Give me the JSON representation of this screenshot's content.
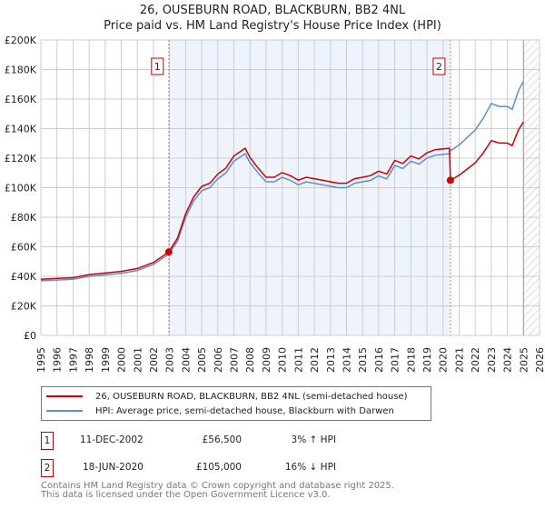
{
  "title_line1": "26, OUSEBURN ROAD, BLACKBURN, BB2 4NL",
  "title_line2": "Price paid vs. HM Land Registry's House Price Index (HPI)",
  "colors": {
    "property": "#cc0000",
    "hpi": "#5b8fd0",
    "shade": "#eef3fc"
  },
  "chart_data": {
    "type": "line",
    "title": "26, OUSEBURN ROAD, BLACKBURN, BB2 4NL — Price paid vs. HM Land Registry's House Price Index (HPI)",
    "xlim": [
      1995,
      2026
    ],
    "ylim": [
      0,
      200000
    ],
    "grid": true,
    "x_ticks": [
      "1995",
      "1996",
      "1997",
      "1998",
      "1999",
      "2000",
      "2001",
      "2002",
      "2003",
      "2004",
      "2005",
      "2006",
      "2007",
      "2008",
      "2009",
      "2010",
      "2011",
      "2012",
      "2013",
      "2014",
      "2015",
      "2016",
      "2017",
      "2018",
      "2019",
      "2020",
      "2021",
      "2022",
      "2023",
      "2024",
      "2025",
      "2026"
    ],
    "y_ticks": [
      "£0",
      "£20K",
      "£40K",
      "£60K",
      "£80K",
      "£100K",
      "£120K",
      "£140K",
      "£160K",
      "£180K",
      "£200K"
    ],
    "shaded_range": [
      2002.95,
      2020.46
    ],
    "hatched_from": 2025.0,
    "series": [
      {
        "name": "26, OUSEBURN ROAD, BLACKBURN, BB2 4NL (semi-detached house)",
        "x": [
          1995,
          1996,
          1997,
          1998,
          1999,
          2000,
          2001,
          2002,
          2002.95,
          2003.5,
          2004,
          2004.5,
          2005,
          2005.5,
          2006,
          2006.5,
          2007,
          2007.7,
          2008,
          2008.5,
          2009,
          2009.5,
          2010,
          2010.5,
          2011,
          2011.5,
          2012,
          2012.5,
          2013,
          2013.5,
          2014,
          2014.5,
          2015,
          2015.5,
          2016,
          2016.5,
          2017,
          2017.5,
          2018,
          2018.5,
          2019,
          2019.5,
          2020.4,
          2020.46,
          2021,
          2021.5,
          2022,
          2022.5,
          2023,
          2023.5,
          2024,
          2024.3,
          2024.7,
          2025
        ],
        "values": [
          38000,
          38600,
          39100,
          41200,
          42200,
          43300,
          45300,
          49400,
          56500,
          65900,
          82400,
          93700,
          100900,
          103000,
          109200,
          113300,
          121500,
          126700,
          120500,
          113300,
          107100,
          107100,
          110200,
          108200,
          105100,
          107100,
          106100,
          105100,
          104000,
          103000,
          103000,
          106100,
          107100,
          108200,
          111200,
          109200,
          118500,
          116400,
          121500,
          119500,
          123600,
          125700,
          126700,
          105000,
          108400,
          112600,
          116800,
          123500,
          131900,
          130200,
          130200,
          128500,
          139400,
          144500
        ]
      },
      {
        "name": "HPI: Average price, semi-detached house, Blackburn with Darwen",
        "x": [
          1995,
          1996,
          1997,
          1998,
          1999,
          2000,
          2001,
          2002,
          2002.95,
          2003.5,
          2004,
          2004.5,
          2005,
          2005.5,
          2006,
          2006.5,
          2007,
          2007.7,
          2008,
          2008.5,
          2009,
          2009.5,
          2010,
          2010.5,
          2011,
          2011.5,
          2012,
          2012.5,
          2013,
          2013.5,
          2014,
          2014.5,
          2015,
          2015.5,
          2016,
          2016.5,
          2017,
          2017.5,
          2018,
          2018.5,
          2019,
          2019.5,
          2020.4,
          2020.46,
          2021,
          2021.5,
          2022,
          2022.5,
          2023,
          2023.5,
          2024,
          2024.3,
          2024.7,
          2025
        ],
        "values": [
          37000,
          37500,
          38000,
          40000,
          41000,
          42000,
          44000,
          48000,
          55000,
          64000,
          80000,
          91000,
          98000,
          100000,
          106000,
          110000,
          118000,
          123000,
          117000,
          110000,
          104000,
          104000,
          107000,
          105000,
          102000,
          104000,
          103000,
          102000,
          101000,
          100000,
          100000,
          103000,
          104000,
          105000,
          108000,
          106000,
          115000,
          113000,
          118000,
          116000,
          120000,
          122000,
          123000,
          125000,
          129000,
          134000,
          139000,
          147000,
          157000,
          155000,
          155000,
          153000,
          166000,
          172000
        ]
      }
    ],
    "sales": [
      {
        "label": "1",
        "x": 2002.95,
        "value": 56500
      },
      {
        "label": "2",
        "x": 2020.46,
        "value": 105000
      }
    ]
  },
  "legend": {
    "property": "26, OUSEBURN ROAD, BLACKBURN, BB2 4NL (semi-detached house)",
    "hpi": "HPI: Average price, semi-detached house, Blackburn with Darwen"
  },
  "transactions": [
    {
      "num": "1",
      "date": "11-DEC-2002",
      "price": "£56,500",
      "hpi": "3% ↑ HPI"
    },
    {
      "num": "2",
      "date": "18-JUN-2020",
      "price": "£105,000",
      "hpi": "16% ↓ HPI"
    }
  ],
  "footer": {
    "line1": "Contains HM Land Registry data © Crown copyright and database right 2025.",
    "line2": "This data is licensed under the Open Government Licence v3.0."
  }
}
